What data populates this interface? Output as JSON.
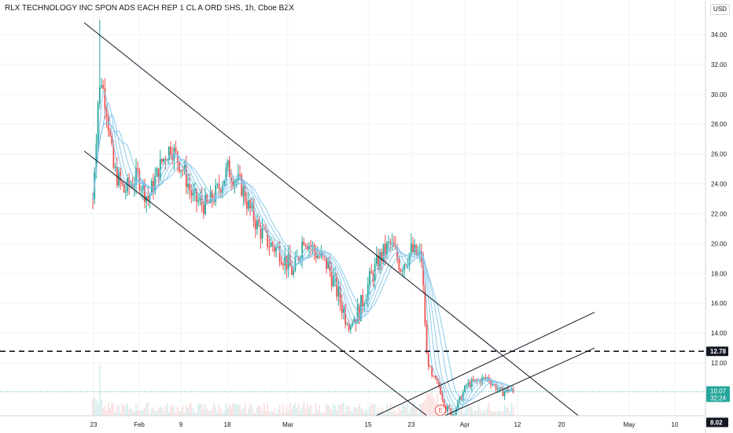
{
  "header": {
    "title": "RLX TECHNOLOGY INC SPON ADS EACH REP 1 CL A ORD SHS, 1h, Cboe BZX",
    "currency": "USD"
  },
  "colors": {
    "up": "#26a69a",
    "down": "#ef5350",
    "ma": "#7fc4ea",
    "trendline": "#131722",
    "axis_text": "#131722",
    "grid": "#f0f3fa",
    "last_price_bg": "#26a69a",
    "level_label_bg": "#131722"
  },
  "chart_data": {
    "type": "candlestick",
    "ylim": [
      6.5,
      36
    ],
    "y_ticks": [
      "12.00",
      "14.00",
      "16.00",
      "18.00",
      "20.00",
      "22.00",
      "24.00",
      "26.00",
      "28.00",
      "30.00",
      "32.00",
      "34.00"
    ],
    "x_ticks": [
      "23",
      "Feb",
      "9",
      "18",
      "Mar",
      "15",
      "23",
      "Apr",
      "12",
      "20",
      "May",
      "10"
    ],
    "price_path": [
      [
        0,
        23.0
      ],
      [
        3,
        29.5
      ],
      [
        5,
        31.0
      ],
      [
        8,
        29.0
      ],
      [
        12,
        25.0
      ],
      [
        18,
        23.5
      ],
      [
        26,
        24.5
      ],
      [
        32,
        23.0
      ],
      [
        40,
        25.5
      ],
      [
        45,
        26.5
      ],
      [
        52,
        25.0
      ],
      [
        58,
        23.0
      ],
      [
        66,
        22.5
      ],
      [
        72,
        23.5
      ],
      [
        78,
        25.0
      ],
      [
        86,
        23.8
      ],
      [
        90,
        22.5
      ],
      [
        96,
        21.0
      ],
      [
        102,
        20.0
      ],
      [
        108,
        19.5
      ],
      [
        116,
        18.0
      ],
      [
        122,
        20.5
      ],
      [
        128,
        19.5
      ],
      [
        136,
        18.5
      ],
      [
        142,
        16.5
      ],
      [
        148,
        14.5
      ],
      [
        154,
        15.5
      ],
      [
        160,
        17.5
      ],
      [
        166,
        19.0
      ],
      [
        172,
        20.0
      ],
      [
        178,
        18.5
      ],
      [
        184,
        19.5
      ],
      [
        190,
        19.0
      ],
      [
        193,
        12.5
      ],
      [
        196,
        11.0
      ],
      [
        200,
        10.5
      ],
      [
        204,
        9.0
      ],
      [
        208,
        8.6
      ],
      [
        212,
        9.5
      ],
      [
        216,
        10.5
      ],
      [
        222,
        10.8
      ],
      [
        228,
        11.0
      ],
      [
        232,
        10.5
      ],
      [
        236,
        10.0
      ],
      [
        240,
        10.2
      ],
      [
        243,
        10.07
      ]
    ],
    "last_price": {
      "value": 10.07,
      "label": "10.07",
      "countdown": "32:24"
    },
    "horizontal_levels": [
      {
        "value": 12.78,
        "label": "12.78",
        "style": "dashed"
      },
      {
        "value": 8.02,
        "label": "8.02",
        "style": "dashed"
      }
    ],
    "trend_channel_down": {
      "upper": [
        [
          -5,
          34.8
        ],
        [
          290,
          7.6
        ]
      ],
      "lower": [
        [
          -5,
          26.2
        ],
        [
          215,
          6.5
        ]
      ]
    },
    "trend_channel_up": {
      "upper": [
        [
          128,
          6.5
        ],
        [
          290,
          15.4
        ]
      ],
      "lower": [
        [
          166,
          6.5
        ],
        [
          290,
          13.0
        ]
      ]
    },
    "moving_average_count": 5,
    "earnings_marker": {
      "label": "E",
      "x_index": 208
    }
  }
}
